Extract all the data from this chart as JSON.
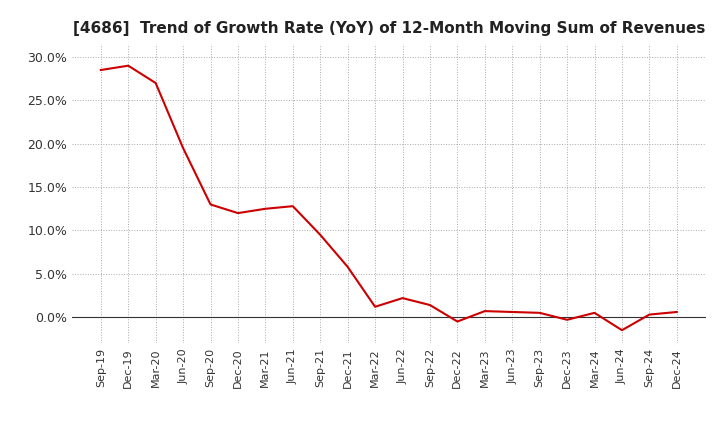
{
  "title": "[4686]  Trend of Growth Rate (YoY) of 12-Month Moving Sum of Revenues",
  "title_fontsize": 11,
  "background_color": "#ffffff",
  "line_color": "#cc0000",
  "grid_color": "#aaaaaa",
  "x_labels": [
    "Sep-19",
    "Dec-19",
    "Mar-20",
    "Jun-20",
    "Sep-20",
    "Dec-20",
    "Mar-21",
    "Jun-21",
    "Sep-21",
    "Dec-21",
    "Mar-22",
    "Jun-22",
    "Sep-22",
    "Dec-22",
    "Mar-23",
    "Jun-23",
    "Sep-23",
    "Dec-23",
    "Mar-24",
    "Jun-24",
    "Sep-24",
    "Dec-24"
  ],
  "y_values": [
    0.285,
    0.29,
    0.27,
    0.195,
    0.13,
    0.12,
    0.125,
    0.128,
    0.095,
    0.058,
    0.012,
    0.022,
    0.014,
    -0.005,
    0.007,
    0.006,
    0.005,
    -0.003,
    0.005,
    -0.015,
    0.003,
    0.006
  ],
  "ylim": [
    -0.03,
    0.315
  ],
  "yticks": [
    0.0,
    0.05,
    0.1,
    0.15,
    0.2,
    0.25,
    0.3
  ],
  "ytick_labels": [
    "0.0%",
    "5.0%",
    "10.0%",
    "15.0%",
    "20.0%",
    "25.0%",
    "30.0%"
  ],
  "figsize": [
    7.2,
    4.4
  ],
  "dpi": 100
}
